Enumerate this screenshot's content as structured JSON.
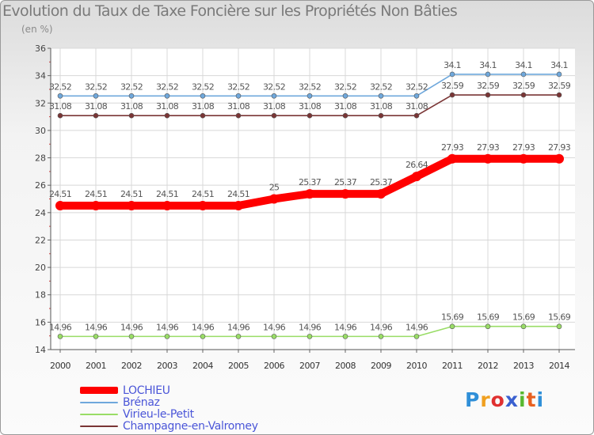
{
  "title": "Evolution du Taux de Taxe Foncière sur les Propriétés Non Bâties",
  "unit_label": "(en %)",
  "logo": {
    "letters": [
      "P",
      "r",
      "o",
      "x",
      "i",
      "t",
      "i"
    ],
    "colors": [
      "#2f8fd8",
      "#f0a020",
      "#e03030",
      "#3a60d0",
      "#58b830",
      "#e86020",
      "#2f8fd8"
    ]
  },
  "chart_data": {
    "type": "line",
    "title": "Evolution du Taux de Taxe Foncière sur les Propriétés Non Bâties",
    "ylabel": "(en %)",
    "ylim": [
      14,
      36
    ],
    "yticks": [
      14,
      16,
      18,
      20,
      22,
      24,
      26,
      28,
      30,
      32,
      34,
      36
    ],
    "categories": [
      "2000",
      "2001",
      "2002",
      "2003",
      "2004",
      "2005",
      "2006",
      "2007",
      "2008",
      "2009",
      "2010",
      "2011",
      "2012",
      "2013",
      "2014"
    ],
    "series": [
      {
        "name": "LOCHIEU",
        "color": "#ff0000",
        "emphasis": true,
        "values": [
          24.51,
          24.51,
          24.51,
          24.51,
          24.51,
          24.51,
          25,
          25.37,
          25.37,
          25.37,
          26.64,
          27.93,
          27.93,
          27.93,
          27.93
        ],
        "labels": [
          "24.51",
          "24.51",
          "24.51",
          "24.51",
          "24.51",
          "24.51",
          "25",
          "25.37",
          "25.37",
          "25.37",
          "26.64",
          "27.93",
          "27.93",
          "27.93",
          "27.93"
        ]
      },
      {
        "name": "Brénaz",
        "color": "#6fa8dc",
        "emphasis": false,
        "values": [
          32.52,
          32.52,
          32.52,
          32.52,
          32.52,
          32.52,
          32.52,
          32.52,
          32.52,
          32.52,
          32.52,
          34.1,
          34.1,
          34.1,
          34.1
        ],
        "labels": [
          "32.52",
          "32.52",
          "32.52",
          "32.52",
          "32.52",
          "32.52",
          "32.52",
          "32.52",
          "32.52",
          "32.52",
          "32.52",
          "34.1",
          "34.1",
          "34.1",
          "34.1"
        ]
      },
      {
        "name": "Virieu-le-Petit",
        "color": "#99dd66",
        "emphasis": false,
        "values": [
          14.96,
          14.96,
          14.96,
          14.96,
          14.96,
          14.96,
          14.96,
          14.96,
          14.96,
          14.96,
          14.96,
          15.69,
          15.69,
          15.69,
          15.69
        ],
        "labels": [
          "14.96",
          "14.96",
          "14.96",
          "14.96",
          "14.96",
          "14.96",
          "14.96",
          "14.96",
          "14.96",
          "14.96",
          "14.96",
          "15.69",
          "15.69",
          "15.69",
          "15.69"
        ]
      },
      {
        "name": "Champagne-en-Valromey",
        "color": "#7a3535",
        "emphasis": false,
        "values": [
          31.08,
          31.08,
          31.08,
          31.08,
          31.08,
          31.08,
          31.08,
          31.08,
          31.08,
          31.08,
          31.08,
          32.59,
          32.59,
          32.59,
          32.59
        ],
        "labels": [
          "31.08",
          "31.08",
          "31.08",
          "31.08",
          "31.08",
          "31.08",
          "31.08",
          "31.08",
          "31.08",
          "31.08",
          "31.08",
          "32.59",
          "32.59",
          "32.59",
          "32.59"
        ]
      }
    ]
  }
}
